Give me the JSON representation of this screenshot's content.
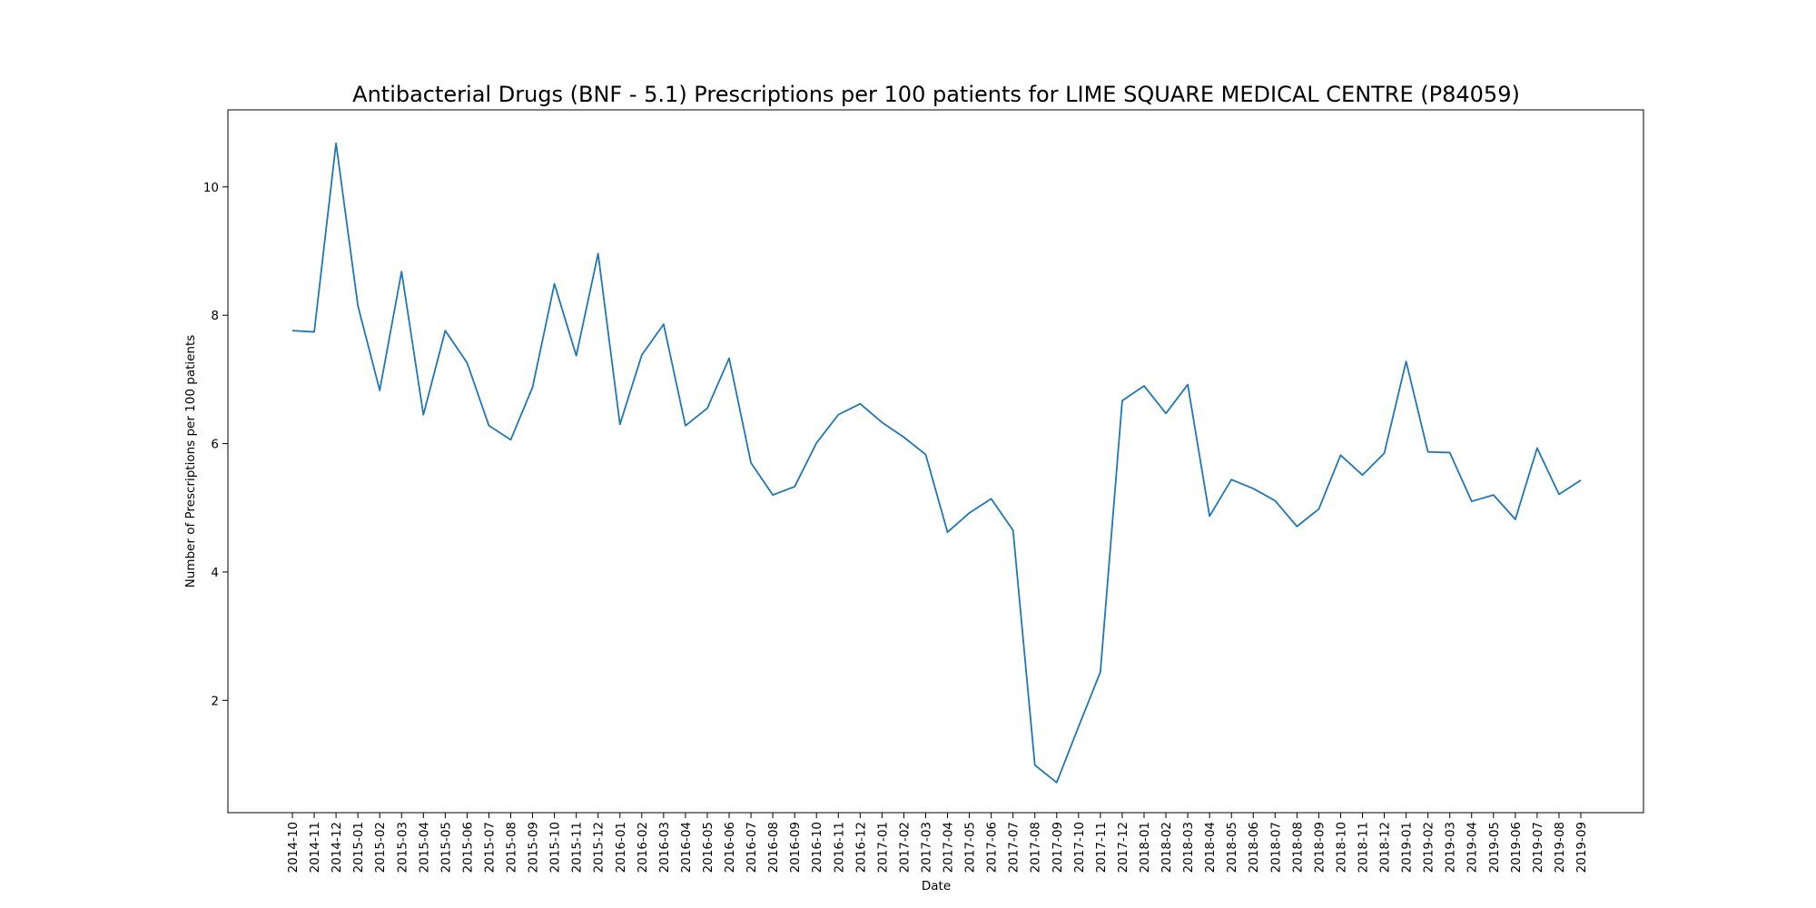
{
  "chart_data": {
    "type": "line",
    "title": "Antibacterial Drugs (BNF - 5.1) Prescriptions per 100 patients for LIME SQUARE MEDICAL CENTRE (P84059)",
    "xlabel": "Date",
    "ylabel": "Number of Prescriptions per 100 patients",
    "ylim": [
      0.25,
      11.2
    ],
    "yticks": [
      2,
      4,
      6,
      8,
      10
    ],
    "grid": false,
    "legend": "none",
    "line_color": "#1f77b4",
    "x": [
      "2014-10",
      "2014-11",
      "2014-12",
      "2015-01",
      "2015-02",
      "2015-03",
      "2015-04",
      "2015-05",
      "2015-06",
      "2015-07",
      "2015-08",
      "2015-09",
      "2015-10",
      "2015-11",
      "2015-12",
      "2016-01",
      "2016-02",
      "2016-03",
      "2016-04",
      "2016-05",
      "2016-06",
      "2016-07",
      "2016-08",
      "2016-09",
      "2016-10",
      "2016-11",
      "2016-12",
      "2017-01",
      "2017-02",
      "2017-03",
      "2017-04",
      "2017-05",
      "2017-06",
      "2017-07",
      "2017-08",
      "2017-09",
      "2017-10",
      "2017-11",
      "2017-12",
      "2018-01",
      "2018-02",
      "2018-03",
      "2018-04",
      "2018-05",
      "2018-06",
      "2018-07",
      "2018-08",
      "2018-09",
      "2018-10",
      "2018-11",
      "2018-12",
      "2019-01",
      "2019-02",
      "2019-03",
      "2019-04",
      "2019-05",
      "2019-06",
      "2019-07",
      "2019-08",
      "2019-09"
    ],
    "values": [
      7.76,
      7.74,
      10.68,
      8.15,
      6.83,
      8.68,
      6.45,
      7.76,
      7.26,
      6.28,
      6.06,
      6.88,
      8.49,
      7.37,
      8.96,
      6.3,
      7.38,
      7.86,
      6.28,
      6.55,
      7.33,
      5.7,
      5.2,
      5.33,
      6.01,
      6.45,
      6.62,
      6.33,
      6.1,
      5.83,
      4.62,
      4.92,
      5.14,
      4.65,
      0.99,
      0.72,
      1.59,
      2.44,
      6.67,
      6.9,
      6.47,
      6.92,
      4.87,
      5.44,
      5.3,
      5.11,
      4.71,
      4.98,
      5.82,
      5.51,
      5.85,
      7.28,
      5.87,
      5.86,
      5.1,
      5.2,
      4.82,
      5.93,
      5.21,
      5.43
    ]
  }
}
